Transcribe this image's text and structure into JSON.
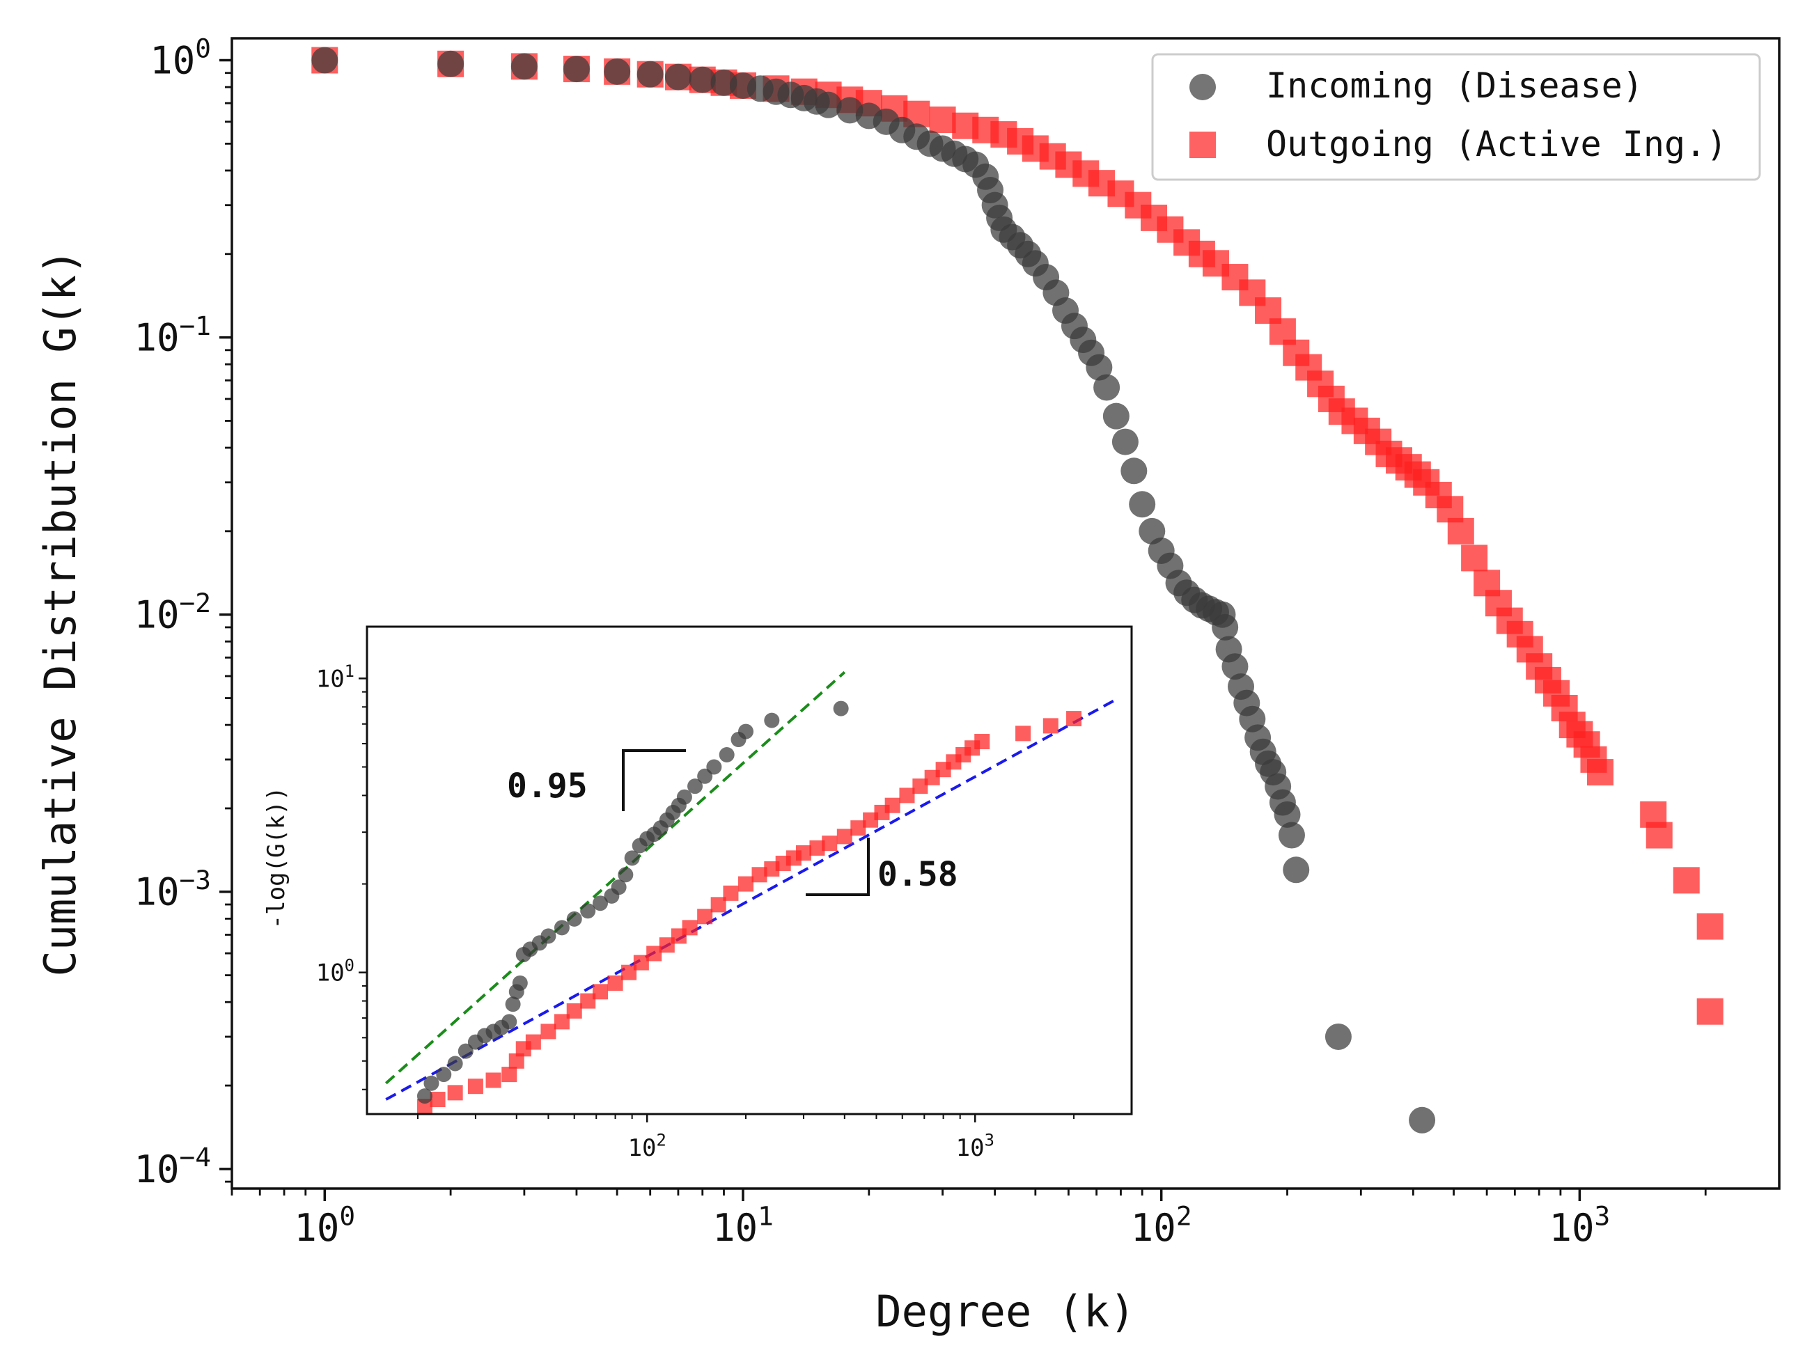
{
  "chart_data": [
    {
      "id": "main",
      "type": "scatter",
      "xscale": "log",
      "yscale": "log",
      "xlim": [
        0.6,
        3000
      ],
      "ylim": [
        8.5e-05,
        1.2
      ],
      "xlabel": "Degree (k)",
      "ylabel": "Cumulative Distribution G(k)",
      "xticks": [
        {
          "value": 1,
          "base": "10",
          "exp": "0"
        },
        {
          "value": 10,
          "base": "10",
          "exp": "1"
        },
        {
          "value": 100,
          "base": "10",
          "exp": "2"
        },
        {
          "value": 1000,
          "base": "10",
          "exp": "3"
        }
      ],
      "yticks": [
        {
          "value": 1,
          "base": "10",
          "exp": "0"
        },
        {
          "value": 0.1,
          "base": "10",
          "exp": "−1"
        },
        {
          "value": 0.01,
          "base": "10",
          "exp": "−2"
        },
        {
          "value": 0.001,
          "base": "10",
          "exp": "−3"
        },
        {
          "value": 0.0001,
          "base": "10",
          "exp": "−4"
        }
      ],
      "legend_position": "top-right",
      "series": [
        {
          "name": "Incoming (Disease)",
          "marker": "circle",
          "color": "#3a3a3a",
          "x": [
            1,
            2,
            3,
            4,
            5,
            6,
            7,
            8,
            9,
            10,
            11,
            12,
            13,
            14,
            15,
            16,
            18,
            20,
            22,
            24,
            26,
            28,
            30,
            32,
            34,
            36,
            38,
            39,
            40,
            41,
            42,
            44,
            46,
            48,
            50,
            53,
            56,
            59,
            62,
            65,
            68,
            71,
            74,
            78,
            82,
            86,
            90,
            95,
            100,
            105,
            110,
            115,
            120,
            125,
            130,
            135,
            140,
            142,
            145,
            150,
            155,
            160,
            165,
            170,
            175,
            180,
            185,
            190,
            195,
            200,
            205,
            210,
            265,
            420
          ],
          "y": [
            1.0,
            0.97,
            0.95,
            0.93,
            0.91,
            0.89,
            0.87,
            0.85,
            0.83,
            0.81,
            0.79,
            0.77,
            0.75,
            0.73,
            0.71,
            0.69,
            0.66,
            0.63,
            0.6,
            0.56,
            0.53,
            0.5,
            0.48,
            0.46,
            0.44,
            0.42,
            0.38,
            0.34,
            0.3,
            0.27,
            0.245,
            0.23,
            0.215,
            0.2,
            0.185,
            0.165,
            0.145,
            0.125,
            0.11,
            0.098,
            0.088,
            0.078,
            0.066,
            0.052,
            0.042,
            0.033,
            0.025,
            0.02,
            0.017,
            0.015,
            0.013,
            0.012,
            0.0113,
            0.0108,
            0.0105,
            0.0102,
            0.01,
            0.009,
            0.0075,
            0.0065,
            0.0055,
            0.0048,
            0.0042,
            0.0036,
            0.0032,
            0.0029,
            0.0027,
            0.0024,
            0.0021,
            0.0019,
            0.0016,
            0.0012,
            0.0003,
            0.00015
          ]
        },
        {
          "name": "Outgoing (Active Ing.)",
          "marker": "square",
          "color": "#ff2020",
          "x": [
            1,
            2,
            3,
            4,
            5,
            6,
            7,
            8,
            9,
            10,
            12,
            14,
            16,
            18,
            20,
            23,
            26,
            30,
            34,
            38,
            42,
            46,
            50,
            55,
            60,
            66,
            72,
            80,
            88,
            96,
            105,
            115,
            125,
            135,
            150,
            165,
            180,
            195,
            210,
            225,
            240,
            255,
            270,
            290,
            310,
            330,
            350,
            370,
            390,
            410,
            430,
            460,
            490,
            520,
            560,
            600,
            640,
            680,
            720,
            760,
            800,
            840,
            880,
            920,
            960,
            1000,
            1040,
            1080,
            1120,
            1500,
            1550,
            1800,
            2050,
            2050
          ],
          "y": [
            1.0,
            0.97,
            0.95,
            0.93,
            0.91,
            0.89,
            0.87,
            0.85,
            0.83,
            0.81,
            0.79,
            0.77,
            0.75,
            0.72,
            0.7,
            0.67,
            0.64,
            0.61,
            0.58,
            0.56,
            0.54,
            0.51,
            0.48,
            0.45,
            0.42,
            0.39,
            0.36,
            0.33,
            0.3,
            0.27,
            0.245,
            0.22,
            0.2,
            0.185,
            0.165,
            0.145,
            0.125,
            0.105,
            0.088,
            0.078,
            0.068,
            0.06,
            0.054,
            0.05,
            0.046,
            0.042,
            0.038,
            0.036,
            0.034,
            0.032,
            0.03,
            0.027,
            0.024,
            0.02,
            0.016,
            0.013,
            0.011,
            0.0095,
            0.0085,
            0.0075,
            0.0065,
            0.0058,
            0.0052,
            0.0046,
            0.004,
            0.0037,
            0.0034,
            0.003,
            0.0027,
            0.0019,
            0.0016,
            0.0011,
            0.00075,
            0.00037
          ]
        }
      ]
    },
    {
      "id": "inset",
      "type": "scatter",
      "xscale": "log",
      "yscale": "log",
      "xlim": [
        14,
        3000
      ],
      "ylim": [
        0.33,
        15
      ],
      "xlabel": "",
      "ylabel": "-log(G(k))",
      "xticks": [
        {
          "value": 100,
          "base": "10",
          "exp": "2"
        },
        {
          "value": 1000,
          "base": "10",
          "exp": "3"
        }
      ],
      "yticks": [
        {
          "value": 1,
          "base": "10",
          "exp": "0"
        },
        {
          "value": 10,
          "base": "10",
          "exp": "1"
        }
      ],
      "series": [
        {
          "name": "Incoming (Disease)",
          "marker": "circle",
          "color": "#3a3a3a",
          "x": [
            21,
            22,
            24,
            26,
            28,
            30,
            32,
            34,
            36,
            38,
            39,
            40,
            41,
            42,
            44,
            47,
            50,
            55,
            60,
            66,
            72,
            78,
            82,
            86,
            90,
            95,
            100,
            105,
            110,
            115,
            120,
            125,
            130,
            140,
            150,
            160,
            175,
            190,
            200,
            240,
            390
          ],
          "y": [
            0.38,
            0.42,
            0.45,
            0.49,
            0.54,
            0.58,
            0.61,
            0.63,
            0.65,
            0.68,
            0.78,
            0.86,
            0.92,
            1.15,
            1.2,
            1.26,
            1.33,
            1.42,
            1.52,
            1.62,
            1.72,
            1.82,
            1.95,
            2.15,
            2.45,
            2.7,
            2.85,
            2.95,
            3.1,
            3.3,
            3.5,
            3.7,
            3.95,
            4.3,
            4.65,
            5.0,
            5.5,
            6.2,
            6.6,
            7.2,
            7.9
          ]
        },
        {
          "name": "Outgoing (Active Ing.)",
          "marker": "square",
          "color": "#ff2020",
          "x": [
            21,
            23,
            26,
            30,
            34,
            38,
            40,
            42,
            45,
            50,
            55,
            60,
            66,
            72,
            80,
            88,
            96,
            105,
            115,
            125,
            135,
            150,
            165,
            180,
            200,
            220,
            240,
            260,
            280,
            300,
            330,
            360,
            400,
            440,
            480,
            520,
            560,
            620,
            680,
            740,
            800,
            860,
            920,
            980,
            1050,
            1400,
            1700,
            2000
          ],
          "y": [
            0.35,
            0.37,
            0.39,
            0.41,
            0.43,
            0.45,
            0.5,
            0.55,
            0.58,
            0.63,
            0.68,
            0.74,
            0.8,
            0.86,
            0.92,
            1.0,
            1.08,
            1.16,
            1.24,
            1.33,
            1.42,
            1.55,
            1.7,
            1.86,
            2.0,
            2.15,
            2.25,
            2.35,
            2.45,
            2.55,
            2.65,
            2.75,
            2.9,
            3.1,
            3.3,
            3.5,
            3.7,
            4.0,
            4.3,
            4.6,
            4.9,
            5.2,
            5.5,
            5.8,
            6.1,
            6.5,
            6.9,
            7.3
          ]
        }
      ],
      "fits": [
        {
          "name": "incoming-fit",
          "color": "#1a8c1a",
          "x1": 16,
          "y1": 0.42,
          "x2": 400,
          "y2": 10.5
        },
        {
          "name": "outgoing-fit",
          "color": "#1a1aee",
          "x1": 16,
          "y1": 0.37,
          "x2": 2700,
          "y2": 8.5
        }
      ],
      "annotations": [
        {
          "name": "slope-incoming",
          "text": "0.95"
        },
        {
          "name": "slope-outgoing",
          "text": "0.58"
        }
      ]
    }
  ]
}
